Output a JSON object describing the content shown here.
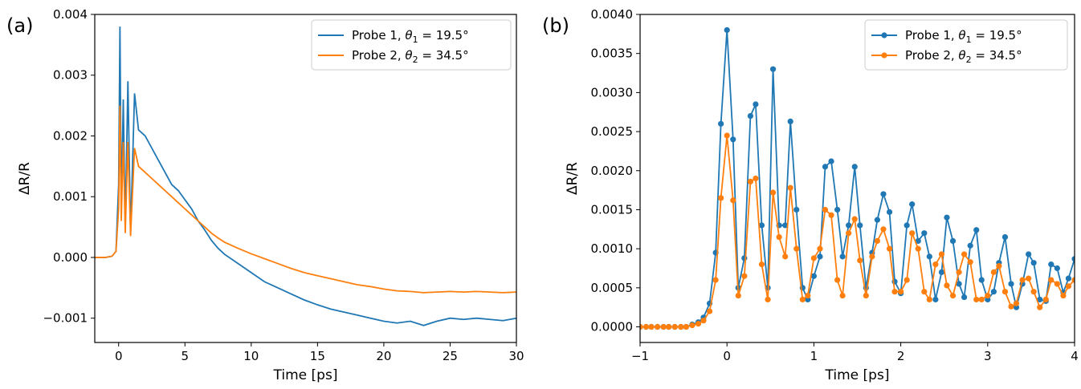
{
  "chart_data": [
    {
      "panel_label": "(a)",
      "type": "line",
      "xlabel": "Time [ps]",
      "ylabel": "ΔR/R",
      "xlim": [
        -1.8,
        30
      ],
      "ylim": [
        -0.0014,
        0.004
      ],
      "xticks": [
        "0",
        "5",
        "10",
        "15",
        "20",
        "25",
        "30"
      ],
      "yticks": [
        "−0.001",
        "0.000",
        "0.001",
        "0.002",
        "0.003",
        "0.004"
      ],
      "legend_position": "upper-right",
      "series": [
        {
          "name": "Probe 1, θ1 = 19.5°",
          "legend_base": "Probe 1, ",
          "legend_sym": "θ",
          "legend_sub": "1",
          "legend_rest": " = 19.5°",
          "color": "#1f77b4",
          "x": [
            -1.8,
            -1.0,
            -0.5,
            -0.2,
            0.0,
            0.1,
            0.2,
            0.35,
            0.5,
            0.7,
            0.9,
            1.2,
            1.5,
            2.0,
            2.5,
            3.0,
            3.5,
            4.0,
            4.5,
            5.0,
            5.5,
            6.0,
            6.5,
            7.0,
            7.5,
            8.0,
            9.0,
            10.0,
            11.0,
            12.0,
            13.0,
            14.0,
            15.0,
            16.0,
            17.0,
            18.0,
            19.0,
            20.0,
            21.0,
            22.0,
            23.0,
            24.0,
            25.0,
            26.0,
            27.0,
            28.0,
            29.0,
            30.0
          ],
          "y": [
            0.0,
            0.0,
            2e-05,
            0.0001,
            0.0012,
            0.0038,
            0.0008,
            0.0026,
            0.0005,
            0.0029,
            0.0004,
            0.0027,
            0.0021,
            0.002,
            0.0018,
            0.0016,
            0.0014,
            0.0012,
            0.0011,
            0.00095,
            0.0008,
            0.0006,
            0.00045,
            0.00028,
            0.00015,
            5e-05,
            -0.0001,
            -0.00025,
            -0.0004,
            -0.0005,
            -0.0006,
            -0.0007,
            -0.00078,
            -0.00085,
            -0.0009,
            -0.00095,
            -0.001,
            -0.00105,
            -0.00108,
            -0.00105,
            -0.00112,
            -0.00105,
            -0.001,
            -0.00102,
            -0.001,
            -0.00102,
            -0.00104,
            -0.001
          ]
        },
        {
          "name": "Probe 2, θ2 = 34.5°",
          "legend_base": "Probe 2, ",
          "legend_sym": "θ",
          "legend_sub": "2",
          "legend_rest": " = 34.5°",
          "color": "#ff7f0e",
          "x": [
            -1.8,
            -1.0,
            -0.5,
            -0.2,
            0.0,
            0.1,
            0.2,
            0.35,
            0.5,
            0.7,
            0.9,
            1.2,
            1.5,
            2.0,
            2.5,
            3.0,
            3.5,
            4.0,
            4.5,
            5.0,
            5.5,
            6.0,
            6.5,
            7.0,
            7.5,
            8.0,
            9.0,
            10.0,
            11.0,
            12.0,
            13.0,
            14.0,
            15.0,
            16.0,
            17.0,
            18.0,
            19.0,
            20.0,
            21.0,
            22.0,
            23.0,
            24.0,
            25.0,
            26.0,
            27.0,
            28.0,
            29.0,
            30.0
          ],
          "y": [
            0.0,
            0.0,
            2e-05,
            0.0001,
            0.0008,
            0.0025,
            0.0006,
            0.0019,
            0.0004,
            0.0019,
            0.00035,
            0.0018,
            0.0015,
            0.0014,
            0.0013,
            0.0012,
            0.0011,
            0.001,
            0.0009,
            0.0008,
            0.0007,
            0.0006,
            0.0005,
            0.0004,
            0.00032,
            0.00025,
            0.00015,
            6e-05,
            -2e-05,
            -0.0001,
            -0.00018,
            -0.00025,
            -0.0003,
            -0.00035,
            -0.0004,
            -0.00045,
            -0.00048,
            -0.00052,
            -0.00055,
            -0.00056,
            -0.00058,
            -0.00057,
            -0.00056,
            -0.00057,
            -0.00056,
            -0.00057,
            -0.00058,
            -0.00057
          ]
        }
      ]
    },
    {
      "panel_label": "(b)",
      "type": "line",
      "markers": true,
      "xlabel": "Time [ps]",
      "ylabel": "ΔR/R",
      "xlim": [
        -1,
        4
      ],
      "ylim": [
        -0.0002,
        0.004
      ],
      "xticks": [
        "−1",
        "0",
        "1",
        "2",
        "3",
        "4"
      ],
      "yticks": [
        "0.0000",
        "0.0005",
        "0.0010",
        "0.0015",
        "0.0020",
        "0.0025",
        "0.0030",
        "0.0035",
        "0.0040"
      ],
      "legend_position": "upper-right",
      "series": [
        {
          "name": "Probe 1, θ1 = 19.5°",
          "legend_base": "Probe 1, ",
          "legend_sym": "θ",
          "legend_sub": "1",
          "legend_rest": " = 19.5°",
          "color": "#1f77b4",
          "x": [
            -1.0,
            -0.93,
            -0.87,
            -0.8,
            -0.73,
            -0.67,
            -0.6,
            -0.53,
            -0.47,
            -0.4,
            -0.33,
            -0.27,
            -0.2,
            -0.13,
            -0.07,
            0.0,
            0.07,
            0.13,
            0.2,
            0.27,
            0.33,
            0.4,
            0.47,
            0.53,
            0.6,
            0.67,
            0.73,
            0.8,
            0.87,
            0.93,
            1.0,
            1.07,
            1.13,
            1.2,
            1.27,
            1.33,
            1.4,
            1.47,
            1.53,
            1.6,
            1.67,
            1.73,
            1.8,
            1.87,
            1.93,
            2.0,
            2.07,
            2.13,
            2.2,
            2.27,
            2.33,
            2.4,
            2.47,
            2.53,
            2.6,
            2.67,
            2.73,
            2.8,
            2.87,
            2.93,
            3.0,
            3.07,
            3.13,
            3.2,
            3.27,
            3.33,
            3.4,
            3.47,
            3.53,
            3.6,
            3.67,
            3.73,
            3.8,
            3.87,
            3.93,
            4.0
          ],
          "y": [
            0.0,
            0.0,
            0.0,
            0.0,
            0.0,
            0.0,
            0.0,
            0.0,
            0.0,
            3e-05,
            6e-05,
            0.00012,
            0.0003,
            0.00095,
            0.0026,
            0.0038,
            0.0024,
            0.0005,
            0.00088,
            0.0027,
            0.00285,
            0.0013,
            0.0005,
            0.0033,
            0.0013,
            0.0013,
            0.00263,
            0.0015,
            0.0005,
            0.00035,
            0.00065,
            0.0009,
            0.00205,
            0.00212,
            0.0015,
            0.0009,
            0.0013,
            0.00205,
            0.0013,
            0.0005,
            0.00095,
            0.00137,
            0.0017,
            0.00147,
            0.00058,
            0.00043,
            0.0013,
            0.00157,
            0.0011,
            0.0012,
            0.0009,
            0.00035,
            0.0007,
            0.0014,
            0.0011,
            0.00055,
            0.00038,
            0.00104,
            0.00124,
            0.0006,
            0.00035,
            0.00045,
            0.00082,
            0.00115,
            0.00055,
            0.00025,
            0.00055,
            0.00093,
            0.00082,
            0.00035,
            0.00033,
            0.0008,
            0.00075,
            0.00044,
            0.00062,
            0.00087
          ]
        },
        {
          "name": "Probe 2, θ2 = 34.5°",
          "legend_base": "Probe 2, ",
          "legend_sym": "θ",
          "legend_sub": "2",
          "legend_rest": " = 34.5°",
          "color": "#ff7f0e",
          "x": [
            -1.0,
            -0.93,
            -0.87,
            -0.8,
            -0.73,
            -0.67,
            -0.6,
            -0.53,
            -0.47,
            -0.4,
            -0.33,
            -0.27,
            -0.2,
            -0.13,
            -0.07,
            0.0,
            0.07,
            0.13,
            0.2,
            0.27,
            0.33,
            0.4,
            0.47,
            0.53,
            0.6,
            0.67,
            0.73,
            0.8,
            0.87,
            0.93,
            1.0,
            1.07,
            1.13,
            1.2,
            1.27,
            1.33,
            1.4,
            1.47,
            1.53,
            1.6,
            1.67,
            1.73,
            1.8,
            1.87,
            1.93,
            2.0,
            2.07,
            2.13,
            2.2,
            2.27,
            2.33,
            2.4,
            2.47,
            2.53,
            2.6,
            2.67,
            2.73,
            2.8,
            2.87,
            2.93,
            3.0,
            3.07,
            3.13,
            3.2,
            3.27,
            3.33,
            3.4,
            3.47,
            3.53,
            3.6,
            3.67,
            3.73,
            3.8,
            3.87,
            3.93,
            4.0
          ],
          "y": [
            0.0,
            0.0,
            0.0,
            0.0,
            0.0,
            0.0,
            0.0,
            0.0,
            0.0,
            2e-05,
            4e-05,
            8e-05,
            0.0002,
            0.0006,
            0.00165,
            0.00245,
            0.00162,
            0.0004,
            0.00065,
            0.00186,
            0.0019,
            0.0008,
            0.00035,
            0.00172,
            0.00115,
            0.0009,
            0.00178,
            0.001,
            0.00035,
            0.0004,
            0.00088,
            0.001,
            0.0015,
            0.00143,
            0.0006,
            0.0004,
            0.0012,
            0.00138,
            0.00085,
            0.0004,
            0.0009,
            0.0011,
            0.00125,
            0.001,
            0.00045,
            0.00045,
            0.0006,
            0.0012,
            0.001,
            0.00045,
            0.00035,
            0.0008,
            0.00093,
            0.00053,
            0.0004,
            0.0007,
            0.00093,
            0.00083,
            0.00035,
            0.00035,
            0.0004,
            0.0007,
            0.00078,
            0.00045,
            0.00026,
            0.0003,
            0.0006,
            0.00062,
            0.00045,
            0.00025,
            0.00035,
            0.0006,
            0.00055,
            0.0004,
            0.00052,
            0.0006
          ]
        }
      ]
    }
  ]
}
